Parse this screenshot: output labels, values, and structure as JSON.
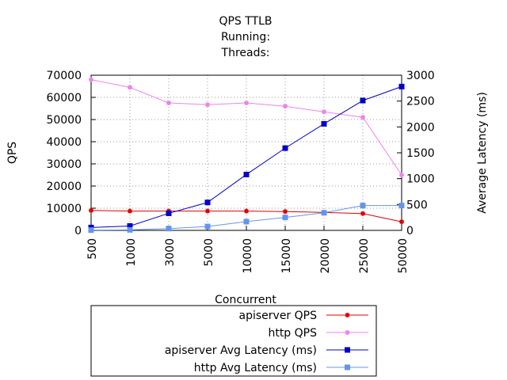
{
  "chart_data": {
    "type": "line",
    "title_lines": [
      "QPS   TTLB",
      "Running:",
      "Threads:"
    ],
    "xlabel": "Concurrent",
    "ylabel_left": "QPS",
    "ylabel_right": "Average Latency (ms)",
    "categories": [
      "500",
      "1000",
      "3000",
      "5000",
      "10000",
      "15000",
      "20000",
      "25000",
      "50000"
    ],
    "y_left": {
      "lim": [
        0,
        70000
      ],
      "ticks": [
        0,
        10000,
        20000,
        30000,
        40000,
        50000,
        60000,
        70000
      ]
    },
    "y_right": {
      "lim": [
        0,
        3000
      ],
      "ticks": [
        0,
        500,
        1000,
        1500,
        2000,
        2500,
        3000
      ]
    },
    "grid": true,
    "legend_position": "bottom",
    "series": [
      {
        "name": "apiserver QPS",
        "axis": "left",
        "color": "#dd0000",
        "marker": "star",
        "values": [
          9000,
          8700,
          8700,
          8700,
          8700,
          8500,
          8100,
          7600,
          3900
        ]
      },
      {
        "name": "http QPS",
        "axis": "left",
        "color": "#ee82ee",
        "marker": "star",
        "values": [
          68000,
          64500,
          57500,
          56700,
          57500,
          56000,
          53500,
          51000,
          25000
        ]
      },
      {
        "name": "apiserver Avg Latency (ms)",
        "axis": "right",
        "color": "#0000c8",
        "marker": "square",
        "values": [
          55,
          85,
          330,
          540,
          1080,
          1590,
          2060,
          2510,
          2780
        ]
      },
      {
        "name": "http Avg Latency (ms)",
        "axis": "right",
        "color": "#6495ed",
        "marker": "square",
        "values": [
          5,
          10,
          35,
          75,
          170,
          250,
          340,
          480,
          480
        ]
      }
    ]
  }
}
